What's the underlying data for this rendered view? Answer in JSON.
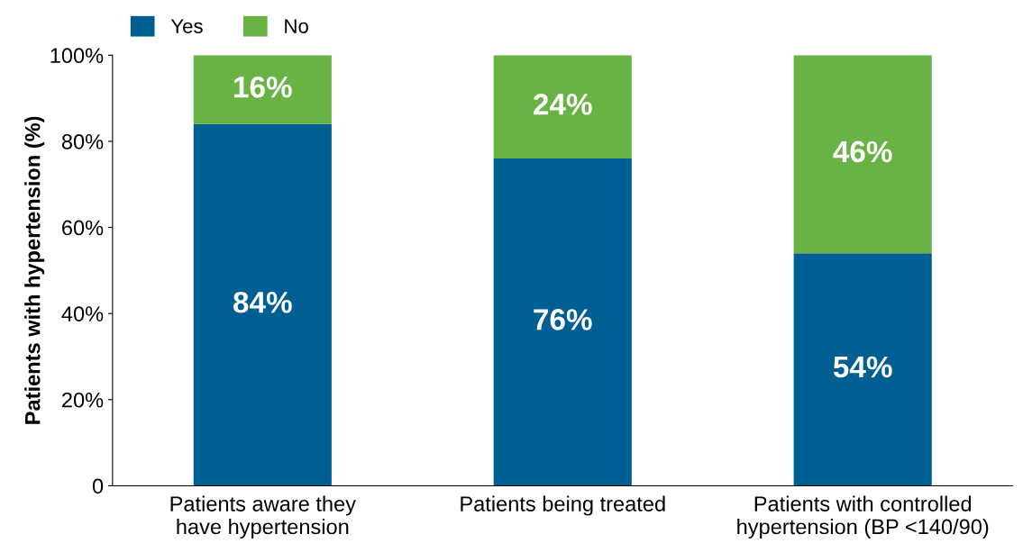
{
  "chart_data": {
    "type": "bar",
    "stacked": true,
    "ylabel": "Patients with hypertension (%)",
    "categories": [
      "Patients aware they\nhave hypertension",
      "Patients being treated",
      "Patients with controlled\nhypertension (BP <140/90)"
    ],
    "series": [
      {
        "name": "Yes",
        "color": "#005f92",
        "values": [
          84,
          76,
          54
        ],
        "value_labels": [
          "84%",
          "76%",
          "54%"
        ]
      },
      {
        "name": "No",
        "color": "#69b345",
        "values": [
          16,
          24,
          46
        ],
        "value_labels": [
          "16%",
          "24%",
          "46%"
        ]
      }
    ],
    "ylim": [
      0,
      100
    ],
    "yticks": [
      0,
      {
        "value": 20,
        "label": "20%"
      },
      {
        "value": 40,
        "label": "40%"
      },
      {
        "value": 60,
        "label": "60%"
      },
      {
        "value": 80,
        "label": "80%"
      },
      {
        "value": 100,
        "label": "100%"
      }
    ],
    "grid": false,
    "legend": "top left"
  }
}
